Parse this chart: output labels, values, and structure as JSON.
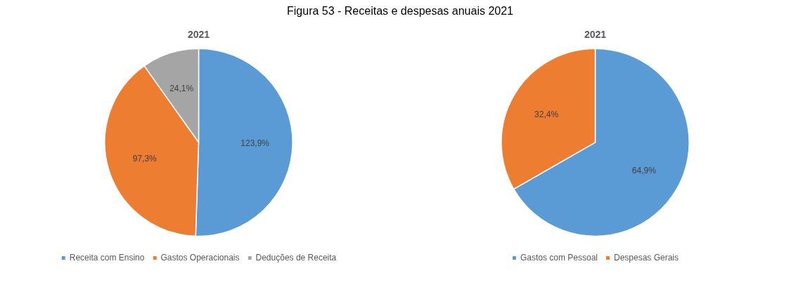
{
  "chart_data": [
    {
      "type": "pie",
      "title": "2021",
      "annotations": [
        "Figura 53 - Receitas e despesas anuais 2021"
      ],
      "categories": [
        "Receita com Ensino",
        "Gastos Operacionais",
        "Deduções de Receita"
      ],
      "values": [
        123.9,
        97.3,
        24.1
      ],
      "colors": [
        "#5b9bd5",
        "#ed7d31",
        "#a5a5a5"
      ],
      "value_labels": [
        "123,9%",
        "97,3%",
        "24,1%"
      ],
      "legend": "bottom"
    },
    {
      "type": "pie",
      "title": "2021",
      "categories": [
        "Gastos com Pessoal",
        "Despesas Gerais"
      ],
      "values": [
        64.9,
        32.4
      ],
      "colors": [
        "#5b9bd5",
        "#ed7d31"
      ],
      "value_labels": [
        "64,9%",
        "32,4%"
      ],
      "legend": "bottom"
    }
  ]
}
